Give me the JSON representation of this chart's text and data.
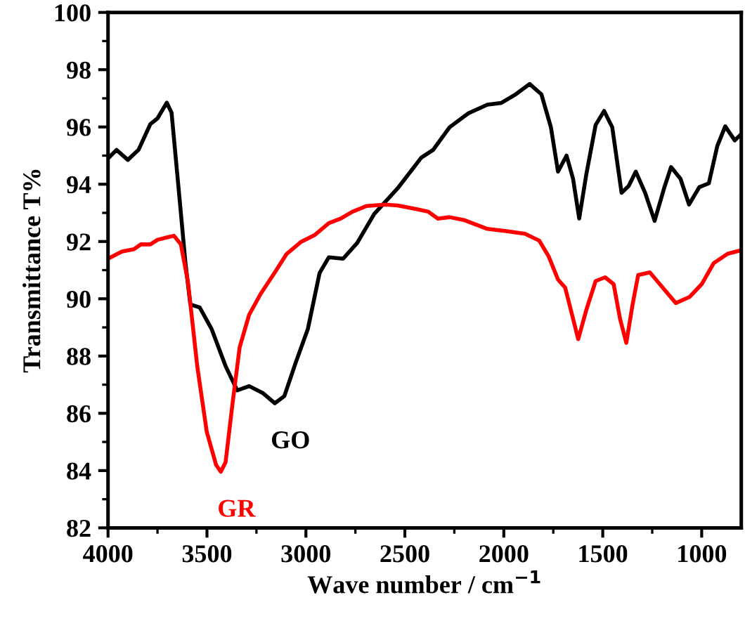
{
  "chart_data": {
    "type": "line",
    "xlabel": "Wave number / cm$^{−1}$",
    "ylabel": "Transmittance T%",
    "xlim": [
      4000,
      800
    ],
    "xticks": [
      4000,
      3500,
      3000,
      2500,
      2000,
      1500,
      1000
    ],
    "ylim": [
      82,
      100
    ],
    "yticks": [
      82,
      84,
      86,
      88,
      90,
      92,
      94,
      96,
      98,
      100
    ],
    "grid": false,
    "legend": false,
    "marker": "none",
    "line_style": "solid",
    "series": [
      {
        "name": "GO",
        "color": "#000000",
        "x": [
          4000,
          3957,
          3900,
          3846,
          3786,
          3750,
          3703,
          3679,
          3644,
          3608,
          3584,
          3537,
          3477,
          3406,
          3347,
          3287,
          3216,
          3157,
          3109,
          3050,
          2990,
          2931,
          2884,
          2812,
          2741,
          2655,
          2536,
          2417,
          2357,
          2274,
          2179,
          2083,
          2012,
          1940,
          1869,
          1810,
          1762,
          1726,
          1683,
          1650,
          1619,
          1583,
          1536,
          1493,
          1452,
          1405,
          1369,
          1333,
          1286,
          1238,
          1190,
          1155,
          1107,
          1064,
          1012,
          964,
          921,
          881,
          833,
          802
        ],
        "values": [
          94.9,
          95.2,
          94.85,
          95.2,
          96.1,
          96.3,
          96.85,
          96.5,
          93.9,
          91.2,
          89.8,
          89.7,
          88.95,
          87.65,
          86.8,
          86.95,
          86.7,
          86.35,
          86.6,
          87.8,
          88.95,
          90.9,
          91.45,
          91.4,
          91.95,
          92.96,
          93.86,
          94.93,
          95.2,
          95.99,
          96.48,
          96.78,
          96.84,
          97.14,
          97.5,
          97.14,
          95.99,
          94.44,
          95.0,
          94.19,
          92.8,
          94.35,
          96.07,
          96.56,
          95.99,
          93.7,
          93.94,
          94.44,
          93.7,
          92.72,
          93.86,
          94.6,
          94.19,
          93.29,
          93.9,
          94.03,
          95.34,
          96.02,
          95.53,
          95.74
        ]
      },
      {
        "name": "GR",
        "color": "#ff0000",
        "x": [
          4000,
          3929,
          3869,
          3834,
          3786,
          3750,
          3703,
          3667,
          3632,
          3596,
          3549,
          3501,
          3454,
          3430,
          3406,
          3371,
          3335,
          3287,
          3228,
          3157,
          3097,
          3026,
          2955,
          2884,
          2824,
          2765,
          2694,
          2599,
          2536,
          2440,
          2381,
          2333,
          2274,
          2202,
          2083,
          1988,
          1893,
          1821,
          1774,
          1726,
          1690,
          1655,
          1624,
          1583,
          1536,
          1488,
          1445,
          1412,
          1381,
          1350,
          1321,
          1262,
          1202,
          1131,
          1060,
          1000,
          940,
          869,
          802
        ],
        "values": [
          91.4,
          91.65,
          91.73,
          91.9,
          91.9,
          92.06,
          92.14,
          92.2,
          91.9,
          90.59,
          87.64,
          85.35,
          84.2,
          83.96,
          84.29,
          86.33,
          88.3,
          89.44,
          90.18,
          90.92,
          91.57,
          91.98,
          92.23,
          92.64,
          92.8,
          93.04,
          93.24,
          93.29,
          93.26,
          93.13,
          93.04,
          92.8,
          92.85,
          92.75,
          92.44,
          92.36,
          92.27,
          92.03,
          91.49,
          90.67,
          90.39,
          89.44,
          88.59,
          89.61,
          90.62,
          90.75,
          90.51,
          89.28,
          88.46,
          89.77,
          90.83,
          90.92,
          90.43,
          89.85,
          90.07,
          90.51,
          91.24,
          91.57,
          91.69
        ]
      }
    ]
  }
}
